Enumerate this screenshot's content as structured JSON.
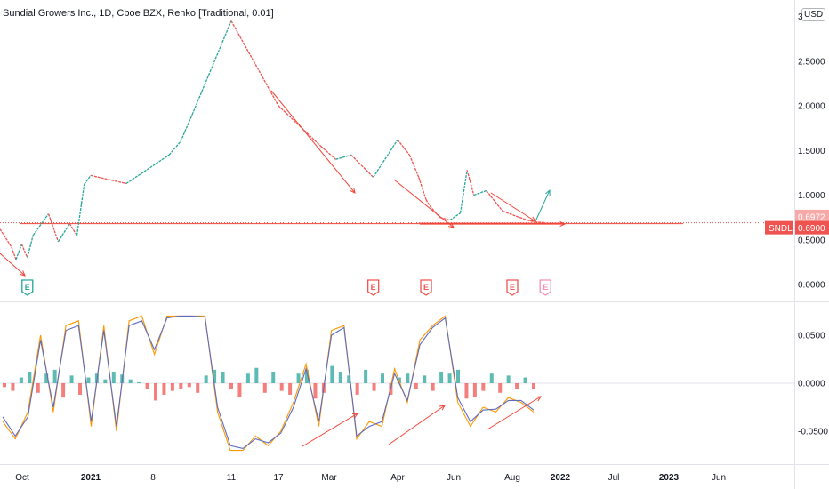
{
  "header": {
    "title": "Sundial Growers Inc., 1D, Cboe BZX, Renko [Traditional, 0.01]",
    "currency": "USD"
  },
  "colors": {
    "up": "#26a69a",
    "down": "#ef5350",
    "fast_line": "#ff9800",
    "slow_line": "#5c6bc0",
    "annotation": "#f44336",
    "annotation_up": "#26a69a",
    "axis_text": "#131722",
    "grid": "#f0f3fa"
  },
  "chart_data": [
    {
      "type": "line",
      "subtype": "renko",
      "ylim": [
        -0.05,
        3.05
      ],
      "yticks": [
        0.0,
        0.5,
        1.0,
        1.5,
        2.0,
        2.5,
        3.0
      ],
      "ytick_labels": [
        "0.0000",
        "0.5000",
        "1.0000",
        "1.5000",
        "2.0000",
        "2.5000",
        "3"
      ],
      "price_labels": [
        {
          "label": "0.6972",
          "value": 0.6972,
          "color": "#f7a9a7"
        },
        {
          "label": "0.6900",
          "value": 0.69,
          "color": "#ef5350",
          "symbol": "SNDL"
        }
      ],
      "series": [
        {
          "x": [
            "2020-09-10",
            "2020-09-25",
            "2020-10-01",
            "2020-10-08",
            "2020-10-15",
            "2020-10-22",
            "2020-11-10",
            "2020-11-22",
            "2020-12-06",
            "2020-12-15",
            "2020-12-24",
            "2021-01-01",
            "2021-01-05",
            "2021-01-15",
            "2021-01-20",
            "2021-01-25",
            "2021-02-11",
            "2021-02-17",
            "2021-02-27",
            "2021-03-04",
            "2021-03-11",
            "2021-03-21",
            "2021-04-01",
            "2021-04-14",
            "2021-04-24",
            "2021-05-02",
            "2021-05-06",
            "2021-05-17",
            "2021-05-28",
            "2021-06-08",
            "2021-06-15",
            "2021-06-22",
            "2021-07-05",
            "2021-07-22",
            "2021-08-08",
            "2021-08-15",
            "2021-08-22",
            "2021-09-01"
          ],
          "values": [
            0.62,
            0.42,
            0.28,
            0.45,
            0.3,
            0.55,
            0.79,
            0.48,
            0.68,
            0.55,
            1.12,
            1.22,
            1.13,
            1.45,
            1.6,
            1.9,
            2.95,
            2.0,
            1.55,
            1.4,
            1.45,
            1.2,
            1.62,
            1.45,
            1.2,
            0.95,
            0.88,
            0.75,
            0.72,
            0.8,
            1.28,
            1.0,
            1.05,
            0.82,
            0.75,
            0.72,
            0.7,
            0.69
          ]
        }
      ],
      "annotations": {
        "support_level": 0.68,
        "earnings_markers": [
          {
            "x": "2020-10-15",
            "label": "E",
            "color": "#26a69a"
          },
          {
            "x": "2021-03-21",
            "label": "E",
            "color": "#ef5350"
          },
          {
            "x": "2021-05-02",
            "label": "E",
            "color": "#ef5350"
          },
          {
            "x": "2021-08-01",
            "label": "E",
            "color": "#ef5350"
          },
          {
            "x": "2021-09-01",
            "label": "E",
            "color": "#f48fb1"
          }
        ]
      }
    },
    {
      "type": "line",
      "subtype": "oscillator",
      "ylim": [
        -0.085,
        0.085
      ],
      "yticks": [
        -0.05,
        0.0,
        0.05
      ],
      "ytick_labels": [
        "-0.0500",
        "0.0000",
        "0.0500"
      ],
      "x_ticks": [
        "Oct",
        "2021",
        "8",
        "11",
        "17",
        "Mar",
        "Apr",
        "Jun",
        "Aug",
        "2022",
        "Jul",
        "2023",
        "Jun"
      ],
      "series": [
        {
          "name": "",
          "values": [
            -0.04,
            -0.058,
            -0.03,
            0.05,
            -0.03,
            0.06,
            0.065,
            -0.045,
            0.06,
            -0.05,
            0.065,
            0.07,
            0.03,
            0.07,
            0.07,
            0.07,
            0.07,
            -0.03,
            -0.07,
            -0.07,
            -0.055,
            -0.065,
            -0.05,
            -0.02,
            0.02,
            -0.045,
            0.055,
            0.06,
            -0.058,
            -0.04,
            -0.045,
            0.015,
            -0.02,
            0.045,
            0.06,
            0.07,
            -0.02,
            -0.045,
            -0.025,
            -0.03,
            -0.015,
            -0.02,
            -0.03
          ]
        },
        {
          "name": "",
          "values": [
            -0.035,
            -0.055,
            -0.035,
            0.045,
            -0.025,
            0.055,
            0.06,
            -0.04,
            0.055,
            -0.045,
            0.06,
            0.065,
            0.035,
            0.068,
            0.07,
            0.07,
            0.069,
            -0.025,
            -0.065,
            -0.068,
            -0.058,
            -0.062,
            -0.052,
            -0.025,
            0.015,
            -0.04,
            0.05,
            0.058,
            -0.055,
            -0.045,
            -0.04,
            0.01,
            -0.018,
            0.04,
            0.058,
            0.068,
            -0.015,
            -0.04,
            -0.028,
            -0.027,
            -0.018,
            -0.018,
            -0.028
          ]
        }
      ],
      "histogram": [
        -0.004,
        -0.008,
        0.006,
        0.012,
        -0.01,
        0.01,
        0.014,
        -0.015,
        0.008,
        -0.012,
        0.006,
        0.01,
        0.004,
        0.012,
        0.009,
        0.004,
        0.001,
        -0.006,
        -0.018,
        -0.012,
        -0.008,
        -0.006,
        -0.004,
        -0.01,
        0.008,
        0.014,
        0.012,
        -0.006,
        -0.014,
        0.01,
        0.016,
        -0.01,
        0.012,
        -0.008,
        -0.012,
        0.01,
        0.014,
        -0.016,
        -0.01,
        0.018,
        0.012,
        0.008,
        -0.012,
        0.014,
        -0.008,
        0.01,
        -0.012,
        0.006,
        0.01,
        -0.006,
        0.008,
        -0.008,
        0.012,
        0.01,
        0.014,
        -0.016,
        -0.014,
        -0.008,
        0.01,
        -0.01,
        0.008,
        -0.006,
        0.006,
        -0.006
      ]
    }
  ]
}
